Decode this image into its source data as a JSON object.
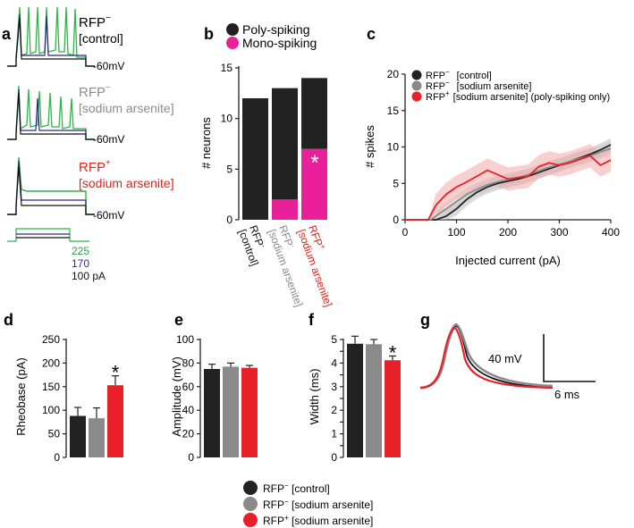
{
  "panels": {
    "a": "a",
    "b": "b",
    "c": "c",
    "d": "d",
    "e": "e",
    "f": "f",
    "g": "g"
  },
  "panel_a": {
    "traces": [
      {
        "label_main": "RFP",
        "label_sup": "−",
        "label_sub": "[control]",
        "color": "#111111",
        "voltage_label": "-60mV"
      },
      {
        "label_main": "RFP",
        "label_sup": "−",
        "label_sub": "[sodium arsenite]",
        "color": "#8c8c8c",
        "voltage_label": "-60mV"
      },
      {
        "label_main": "RFP",
        "label_sup": "+",
        "label_sub": "[sodium arsenite]",
        "color": "#e32119",
        "voltage_label": "-60mV"
      }
    ],
    "steps": [
      {
        "value": "225",
        "color": "#27a046"
      },
      {
        "value": "170",
        "color": "#2a2a7a"
      },
      {
        "value": "100 pA",
        "color": "#111111"
      }
    ]
  },
  "colors": {
    "control": "#222222",
    "arsenite_neg": "#8a8a8a",
    "arsenite_pos": "#e82027",
    "mono": "#e8219b",
    "poly": "#222222",
    "green": "#2fb34a",
    "navy": "#2a2a80"
  },
  "chart_data": [
    {
      "id": "b",
      "type": "bar",
      "legend": [
        "Poly-spiking",
        "Mono-spiking"
      ],
      "categories": [
        "RFP- [control]",
        "RFP- [sodium arsenite]",
        "RFP+ [sodium arsenite]"
      ],
      "category_lines": [
        [
          "RFP",
          "-",
          "[control]"
        ],
        [
          "RFP",
          "-",
          "[sodium arsenite]"
        ],
        [
          "RFP",
          "+",
          "[sodium arsenite]"
        ]
      ],
      "series": [
        {
          "name": "Poly-spiking",
          "values": [
            12,
            11,
            7
          ]
        },
        {
          "name": "Mono-spiking",
          "values": [
            0,
            2,
            7
          ]
        }
      ],
      "ylabel": "# neurons",
      "ylim": [
        0,
        15
      ],
      "yticks": [
        0,
        5,
        10,
        15
      ],
      "annotation": "*"
    },
    {
      "id": "c",
      "type": "line",
      "xlabel": "Injected current (pA)",
      "ylabel": "# spikes",
      "xlim": [
        0,
        400
      ],
      "ylim": [
        0,
        20
      ],
      "xticks": [
        0,
        100,
        200,
        300,
        400
      ],
      "yticks": [
        0,
        5,
        10,
        15,
        20
      ],
      "legend": [
        {
          "main": "RFP",
          "sup": "−",
          "sub": "[control]"
        },
        {
          "main": "RFP",
          "sup": "−",
          "sub": "[sodium arsenite]"
        },
        {
          "main": "RFP",
          "sup": "+",
          "sub": "[sodium arsenite] (poly-spiking only)"
        }
      ],
      "series": [
        {
          "name": "RFP- [control]",
          "x": [
            0,
            60,
            80,
            100,
            120,
            140,
            160,
            180,
            200,
            220,
            240,
            260,
            280,
            300,
            320,
            340,
            360,
            380,
            400
          ],
          "y": [
            0,
            0,
            0.5,
            1.5,
            2.8,
            3.8,
            4.5,
            5,
            5.3,
            5.6,
            6,
            6.5,
            7,
            7.5,
            8,
            8.5,
            9,
            9.6,
            10.3
          ]
        },
        {
          "name": "RFP- [sodium arsenite]",
          "x": [
            0,
            50,
            70,
            100,
            120,
            140,
            160,
            180,
            200,
            220,
            240,
            260,
            280,
            300,
            320,
            340,
            360,
            380,
            400
          ],
          "y": [
            0,
            0,
            1,
            2.5,
            3.5,
            4.2,
            4.8,
            5.2,
            5.5,
            5.8,
            6.2,
            6.7,
            7.2,
            7.6,
            8,
            8.4,
            8.8,
            9.3,
            9.8
          ]
        },
        {
          "name": "RFP+ [sodium arsenite] (poly-spiking only)",
          "x": [
            0,
            45,
            60,
            80,
            100,
            120,
            140,
            160,
            180,
            200,
            220,
            240,
            260,
            280,
            300,
            320,
            340,
            360,
            380,
            400
          ],
          "y": [
            0,
            0,
            2,
            3.5,
            4.5,
            5.2,
            6,
            6.8,
            6.2,
            5.6,
            5.8,
            6,
            7.3,
            7.8,
            7.5,
            7.8,
            8.3,
            8.8,
            7.5,
            8.2
          ]
        }
      ]
    },
    {
      "id": "d",
      "type": "bar",
      "ylabel": "Rheobase (pA)",
      "ylim": [
        0,
        250
      ],
      "yticks": [
        0,
        50,
        100,
        150,
        200,
        250
      ],
      "categories": [
        "RFP- [control]",
        "RFP- [sodium arsenite]",
        "RFP+ [sodium arsenite]"
      ],
      "values": [
        88,
        83,
        153
      ],
      "errors": [
        18,
        22,
        20
      ],
      "annotation": "*",
      "annotation_index": 2
    },
    {
      "id": "e",
      "type": "bar",
      "ylabel": "Amplitude (mV)",
      "ylim": [
        0,
        100
      ],
      "yticks": [
        0,
        20,
        40,
        60,
        80,
        100
      ],
      "categories": [
        "RFP- [control]",
        "RFP- [sodium arsenite]",
        "RFP+ [sodium arsenite]"
      ],
      "values": [
        75,
        77,
        76
      ],
      "errors": [
        4,
        3,
        2
      ]
    },
    {
      "id": "f",
      "type": "bar",
      "ylabel": "Width (ms)",
      "ylim": [
        0,
        5
      ],
      "yticks": [
        0,
        0.5,
        1,
        1.5,
        2,
        2.5,
        3,
        3.5,
        4,
        4.5,
        5
      ],
      "ytick_labels": [
        "0",
        "",
        "1",
        "",
        "2",
        "",
        "3",
        "",
        "4",
        "",
        "5"
      ],
      "categories": [
        "RFP- [control]",
        "RFP- [sodium arsenite]",
        "RFP+ [sodium arsenite]"
      ],
      "values": [
        4.82,
        4.8,
        4.12
      ],
      "errors": [
        0.32,
        0.2,
        0.18
      ],
      "annotation": "*",
      "annotation_index": 2
    }
  ],
  "panel_g": {
    "scale_v": "40 mV",
    "scale_t": "6 ms"
  },
  "bottom_legend": [
    {
      "main": "RFP",
      "sup": "−",
      "sub": " [control]",
      "color": "#222222"
    },
    {
      "main": "RFP",
      "sup": "−",
      "sub": " [sodium arsenite]",
      "color": "#8a8a8a"
    },
    {
      "main": "RFP",
      "sup": "+",
      "sub": " [sodium arsenite]",
      "color": "#e82027"
    }
  ]
}
